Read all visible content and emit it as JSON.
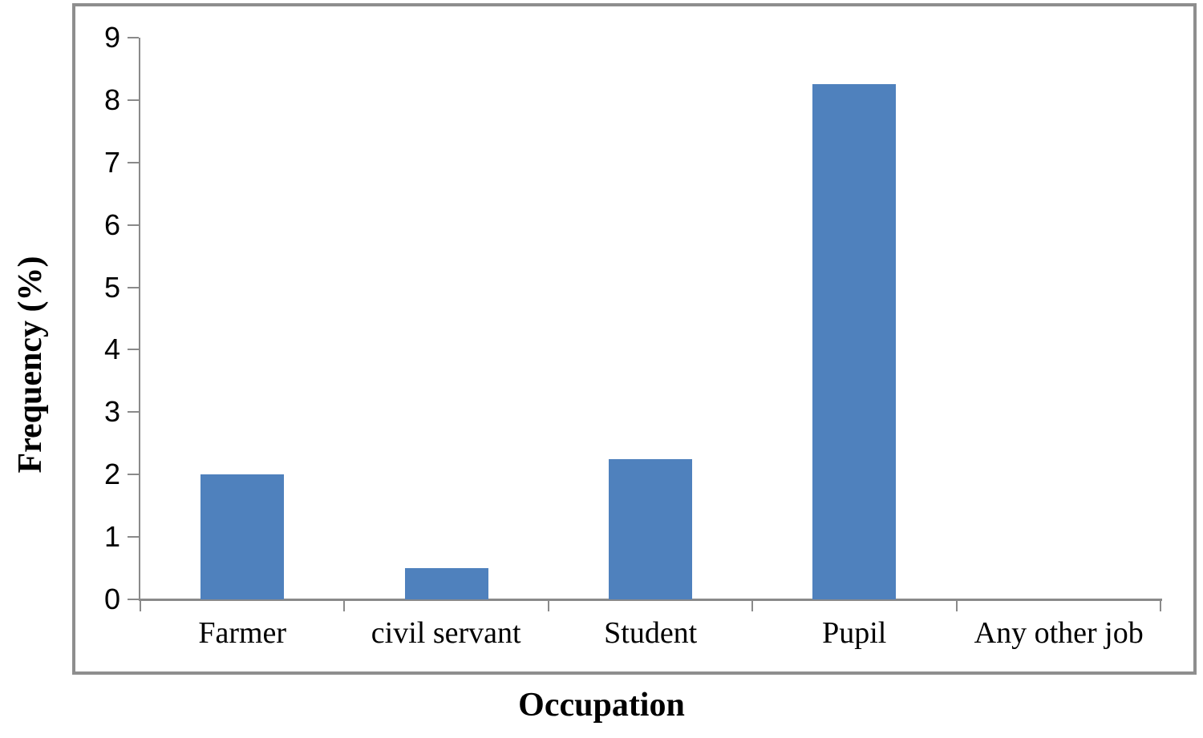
{
  "chart_data": {
    "type": "bar",
    "title": "",
    "xlabel": "Occupation",
    "ylabel": "Frequency (%)",
    "categories": [
      "Farmer",
      "civil servant",
      "Student",
      "Pupil",
      "Any other job"
    ],
    "values": [
      2,
      0.5,
      2.25,
      8.25,
      0
    ],
    "ylim": [
      0,
      9
    ],
    "yticks": [
      0,
      1,
      2,
      3,
      4,
      5,
      6,
      7,
      8,
      9
    ],
    "ytick_step": 1,
    "grid": false,
    "legend_position": "none",
    "bar_color": "#4F81BD",
    "axis_color": "#8a8a8a",
    "border_color": "#8e8e8e",
    "text_color": "#000000"
  }
}
